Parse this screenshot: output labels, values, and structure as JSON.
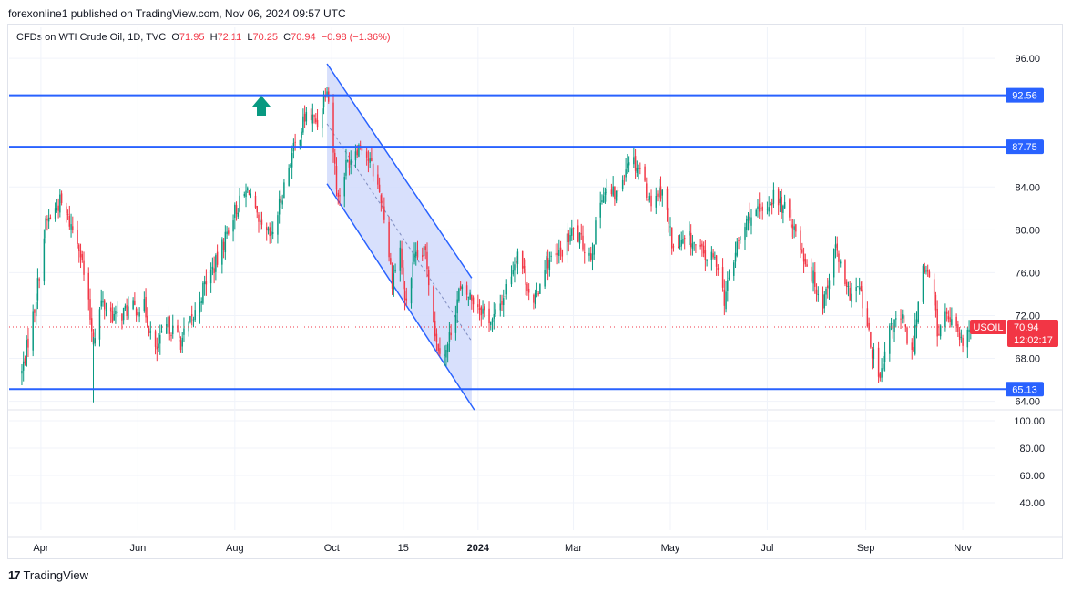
{
  "publisher": "forexonline1 published on TradingView.com, Nov 06, 2024 09:57 UTC",
  "legend": {
    "symbol": "CFDs on WTI Crude Oil, 1D, TVC",
    "open_label": "O",
    "open": "71.95",
    "high_label": "H",
    "high": "72.11",
    "low_label": "L",
    "low": "70.25",
    "close_label": "C",
    "close": "70.94",
    "change": "−0.98 (−1.36%)"
  },
  "footer": {
    "logo_mark": "17",
    "logo_text": "TradingView"
  },
  "colors": {
    "up": "#089981",
    "down": "#f23645",
    "level_line": "#2962ff",
    "channel_fill": "#d1dbfb",
    "grid": "#f0f3fa",
    "arrow": "#089981"
  },
  "chart_data": {
    "type": "candlestick",
    "symbol": "USOIL",
    "interval": "1D",
    "price_axis": {
      "ticks": [
        "96.00",
        "84.00",
        "80.00",
        "76.00",
        "72.00",
        "68.00",
        "64.00"
      ],
      "range": [
        63.2,
        97.2
      ]
    },
    "volume_axis": {
      "ticks": [
        "100.00",
        "80.00",
        "60.00",
        "40.00"
      ],
      "range": [
        20,
        108
      ]
    },
    "x_ticks": [
      "Apr",
      "Jun",
      "Aug",
      "Oct",
      "15",
      "2024",
      "Mar",
      "May",
      "Jul",
      "Sep",
      "Nov"
    ],
    "horizontal_levels": [
      "92.56",
      "87.75",
      "65.13"
    ],
    "last_price": {
      "symbol_label": "USOIL",
      "price": "70.94",
      "countdown": "12:02:17"
    },
    "channel": {
      "upper": {
        "start": [
          "2023-09-28",
          95.5
        ],
        "end": [
          "2023-12-28",
          75.5
        ]
      },
      "lower": {
        "start": [
          "2023-09-28",
          84.3
        ],
        "end": [
          "2023-12-28",
          63.7
        ]
      }
    },
    "anchors": [
      [
        "2023-03-20",
        66.7
      ],
      [
        "2023-03-28",
        72.7
      ],
      [
        "2023-04-04",
        80.5
      ],
      [
        "2023-04-13",
        82.6
      ],
      [
        "2023-04-25",
        78.8
      ],
      [
        "2023-05-04",
        69.8
      ],
      [
        "2023-05-09",
        73.2
      ],
      [
        "2023-05-18",
        71.8
      ],
      [
        "2023-05-26",
        72.6
      ],
      [
        "2023-06-05",
        72.8
      ],
      [
        "2023-06-12",
        68.5
      ],
      [
        "2023-06-20",
        71.2
      ],
      [
        "2023-06-28",
        69.6
      ],
      [
        "2023-07-06",
        71.8
      ],
      [
        "2023-07-14",
        75.3
      ],
      [
        "2023-07-21",
        77.1
      ],
      [
        "2023-07-31",
        81.5
      ],
      [
        "2023-08-10",
        83.9
      ],
      [
        "2023-08-16",
        80.2
      ],
      [
        "2023-08-24",
        79.2
      ],
      [
        "2023-09-05",
        86.6
      ],
      [
        "2023-09-15",
        90.8
      ],
      [
        "2023-09-22",
        90.0
      ],
      [
        "2023-09-28",
        93.7
      ],
      [
        "2023-10-05",
        82.8
      ],
      [
        "2023-10-10",
        86.0
      ],
      [
        "2023-10-16",
        87.7
      ],
      [
        "2023-10-20",
        88.0
      ],
      [
        "2023-10-27",
        85.5
      ],
      [
        "2023-11-02",
        82.5
      ],
      [
        "2023-11-08",
        75.3
      ],
      [
        "2023-11-13",
        78.2
      ],
      [
        "2023-11-16",
        72.9
      ],
      [
        "2023-11-22",
        77.1
      ],
      [
        "2023-11-29",
        77.9
      ],
      [
        "2023-12-06",
        69.4
      ],
      [
        "2023-12-12",
        68.6
      ],
      [
        "2023-12-20",
        74.2
      ],
      [
        "2023-12-27",
        73.8
      ],
      [
        "2024-01-03",
        72.7
      ],
      [
        "2024-01-10",
        71.4
      ],
      [
        "2024-01-18",
        74.1
      ],
      [
        "2024-01-26",
        78.1
      ],
      [
        "2024-02-05",
        72.8
      ],
      [
        "2024-02-12",
        76.9
      ],
      [
        "2024-02-20",
        77.4
      ],
      [
        "2024-03-01",
        79.9
      ],
      [
        "2024-03-12",
        77.6
      ],
      [
        "2024-03-19",
        83.5
      ],
      [
        "2024-03-28",
        83.2
      ],
      [
        "2024-04-05",
        86.9
      ],
      [
        "2024-04-12",
        85.7
      ],
      [
        "2024-04-18",
        82.7
      ],
      [
        "2024-04-26",
        83.9
      ],
      [
        "2024-05-03",
        78.1
      ],
      [
        "2024-05-13",
        79.1
      ],
      [
        "2024-05-22",
        77.6
      ],
      [
        "2024-05-31",
        77.0
      ],
      [
        "2024-06-04",
        73.5
      ],
      [
        "2024-06-12",
        78.5
      ],
      [
        "2024-06-20",
        81.3
      ],
      [
        "2024-06-28",
        81.5
      ],
      [
        "2024-07-05",
        83.2
      ],
      [
        "2024-07-16",
        81.0
      ],
      [
        "2024-07-24",
        77.6
      ],
      [
        "2024-08-05",
        73.2
      ],
      [
        "2024-08-13",
        78.4
      ],
      [
        "2024-08-20",
        74.0
      ],
      [
        "2024-08-28",
        74.5
      ],
      [
        "2024-09-04",
        69.2
      ],
      [
        "2024-09-10",
        65.8
      ],
      [
        "2024-09-17",
        71.2
      ],
      [
        "2024-09-24",
        71.5
      ],
      [
        "2024-09-30",
        68.2
      ],
      [
        "2024-10-07",
        77.1
      ],
      [
        "2024-10-14",
        73.8
      ],
      [
        "2024-10-16",
        70.4
      ],
      [
        "2024-10-22",
        72.1
      ],
      [
        "2024-10-31",
        69.3
      ],
      [
        "2024-11-06",
        70.94
      ]
    ]
  }
}
